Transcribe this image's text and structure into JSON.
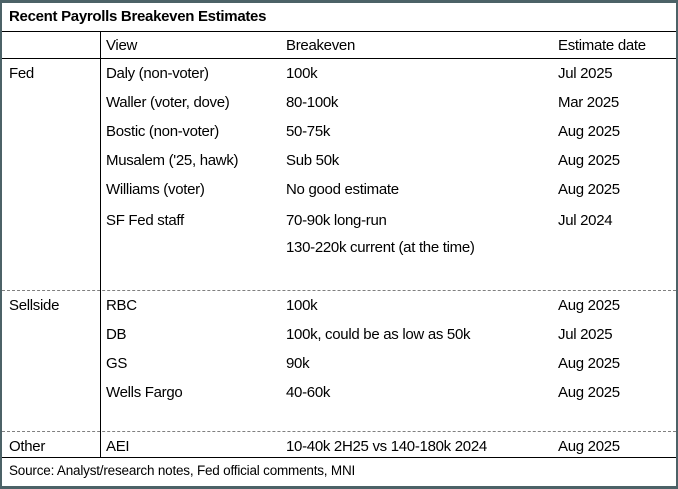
{
  "title": "Recent Payrolls Breakeven Estimates",
  "columns": {
    "group": "",
    "view": "View",
    "breakeven": "Breakeven",
    "date": "Estimate date"
  },
  "sections": [
    {
      "group": "Fed",
      "rows": [
        {
          "view": "Daly (non-voter)",
          "breakeven": "100k",
          "date": "Jul 2025"
        },
        {
          "view": "Waller (voter, dove)",
          "breakeven": "80-100k",
          "date": "Mar 2025"
        },
        {
          "view": "Bostic (non-voter)",
          "breakeven": "50-75k",
          "date": "Aug 2025"
        },
        {
          "view": "Musalem ('25, hawk)",
          "breakeven": "Sub 50k",
          "date": "Aug 2025"
        },
        {
          "view": "Williams (voter)",
          "breakeven": "No good estimate",
          "date": "Aug 2025"
        },
        {
          "view": "SF Fed staff",
          "breakeven": "70-90k long-run",
          "date": "Jul 2024"
        },
        {
          "view": "",
          "breakeven": "130-220k current (at the time)",
          "date": ""
        }
      ]
    },
    {
      "group": "Sellside",
      "rows": [
        {
          "view": "RBC",
          "breakeven": "100k",
          "date": "Aug 2025"
        },
        {
          "view": "DB",
          "breakeven": "100k, could be as low as 50k",
          "date": "Jul 2025"
        },
        {
          "view": "GS",
          "breakeven": "90k",
          "date": "Aug 2025"
        },
        {
          "view": "Wells Fargo",
          "breakeven": "40-60k",
          "date": "Aug 2025"
        }
      ]
    },
    {
      "group": "Other",
      "rows": [
        {
          "view": "AEI",
          "breakeven": "10-40k 2H25 vs 140-180k 2024",
          "date": "Aug 2025"
        }
      ]
    }
  ],
  "source": "Source: Analyst/research notes, Fed official comments, MNI",
  "colors": {
    "outer_border": "#4c6267",
    "inner_rule": "#000000",
    "section_divider_dashed": "#808080",
    "text": "#000000",
    "background": "#ffffff"
  }
}
